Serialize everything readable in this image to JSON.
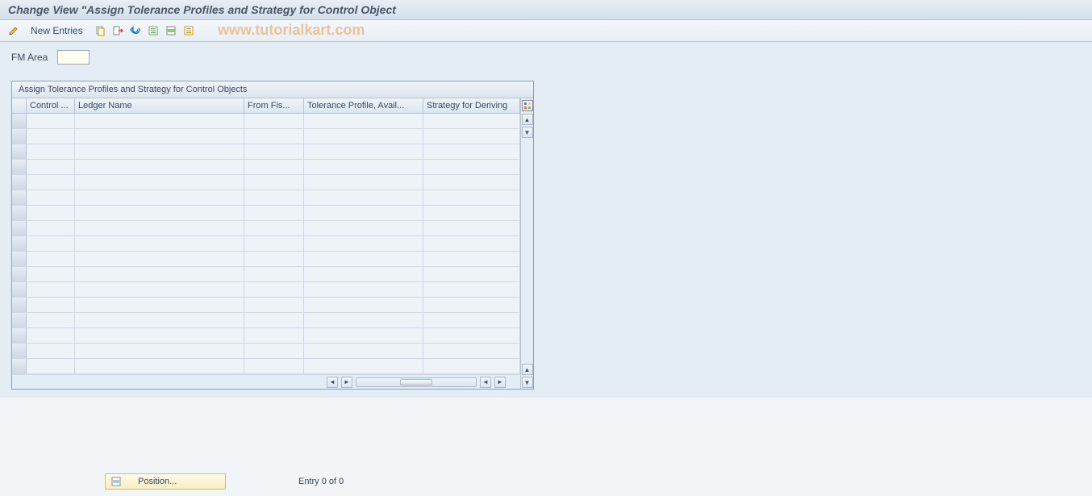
{
  "header": {
    "title": "Change View \"Assign Tolerance Profiles and Strategy for Control Object"
  },
  "toolbar": {
    "new_entries_label": "New Entries"
  },
  "watermark": "www.tutorialkart.com",
  "fm": {
    "label": "FM Area",
    "value": ""
  },
  "table": {
    "title": "Assign Tolerance Profiles and Strategy for Control Objects",
    "columns": [
      {
        "label": "Control ...",
        "width_class": "c-w0"
      },
      {
        "label": "Ledger Name",
        "width_class": "c-w1"
      },
      {
        "label": "From Fis...",
        "width_class": "c-w2"
      },
      {
        "label": "Tolerance Profile, Avail...",
        "width_class": "c-w3"
      },
      {
        "label": "Strategy for Deriving",
        "width_class": "c-w4"
      }
    ],
    "row_count": 17
  },
  "footer": {
    "position_label": "Position...",
    "entry_text": "Entry 0 of 0"
  },
  "colors": {
    "title_bg_top": "#e8eef5",
    "title_bg_bottom": "#d4dee9",
    "border": "#b8c4d4",
    "content_bg": "#e4ecf4",
    "cell_bg": "#eef3f8",
    "position_btn_top": "#fffce8",
    "position_btn_bottom": "#f7eec2",
    "watermark_color": "rgba(230,145,56,0.5)"
  }
}
